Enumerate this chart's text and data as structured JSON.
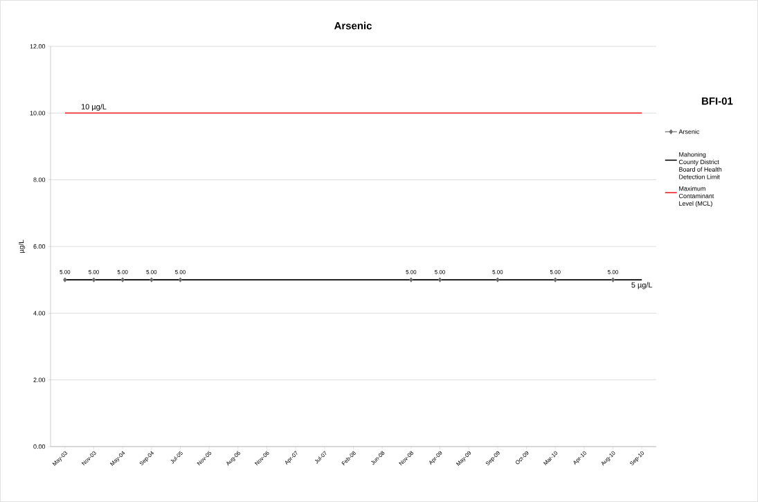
{
  "chart_data": {
    "type": "line",
    "title": "Arsenic",
    "subtitle": "BFI-01",
    "ylabel": "µg/L",
    "categories": [
      "May-03",
      "Nov-03",
      "May-04",
      "Sep-04",
      "Jul-05",
      "Nov-05",
      "Aug-06",
      "Nov-06",
      "Apr-07",
      "Jul-07",
      "Feb-08",
      "Jun-08",
      "Nov-08",
      "Apr-09",
      "May-09",
      "Sep-09",
      "Oct-09",
      "Mar-10",
      "Apr-10",
      "Aug-10",
      "Sep-10"
    ],
    "series": [
      {
        "name": "Arsenic",
        "color": "#6e6e6e",
        "marker": "diamond",
        "values": [
          5,
          5,
          5,
          5,
          5,
          null,
          null,
          null,
          null,
          null,
          null,
          null,
          5,
          5,
          null,
          5,
          null,
          5,
          null,
          5,
          null
        ],
        "value_labels": [
          "5.00",
          "5.00",
          "5.00",
          "5.00",
          "5.00",
          null,
          null,
          null,
          null,
          null,
          null,
          null,
          "5.00",
          "5.00",
          null,
          "5.00",
          null,
          "5.00",
          null,
          "5.00",
          null
        ]
      },
      {
        "name": "Mahoning County District Board of Health Detection Limit",
        "color": "#000000",
        "marker": "none",
        "values": [
          5,
          5,
          5,
          5,
          5,
          5,
          5,
          5,
          5,
          5,
          5,
          5,
          5,
          5,
          5,
          5,
          5,
          5,
          5,
          5,
          5
        ]
      },
      {
        "name": "Maximum Contaminant Level (MCL)",
        "color": "#ee1c1c",
        "marker": "none",
        "values": [
          10,
          10,
          10,
          10,
          10,
          10,
          10,
          10,
          10,
          10,
          10,
          10,
          10,
          10,
          10,
          10,
          10,
          10,
          10,
          10,
          10
        ]
      }
    ],
    "annotations": [
      {
        "text": "10 µg/L",
        "x": "Nov-03",
        "y": 10
      },
      {
        "text": "5 µg/L",
        "x": "Sep-10",
        "y": 5
      }
    ],
    "ylim": [
      0,
      12
    ],
    "yticks": [
      {
        "value": 0,
        "label": "0.00"
      },
      {
        "value": 2,
        "label": "2.00"
      },
      {
        "value": 4,
        "label": "4.00"
      },
      {
        "value": 6,
        "label": "6.00"
      },
      {
        "value": 8,
        "label": "8.00"
      },
      {
        "value": 10,
        "label": "10.00"
      },
      {
        "value": 12,
        "label": "12.00"
      }
    ],
    "grid": "y",
    "legend": "right"
  }
}
